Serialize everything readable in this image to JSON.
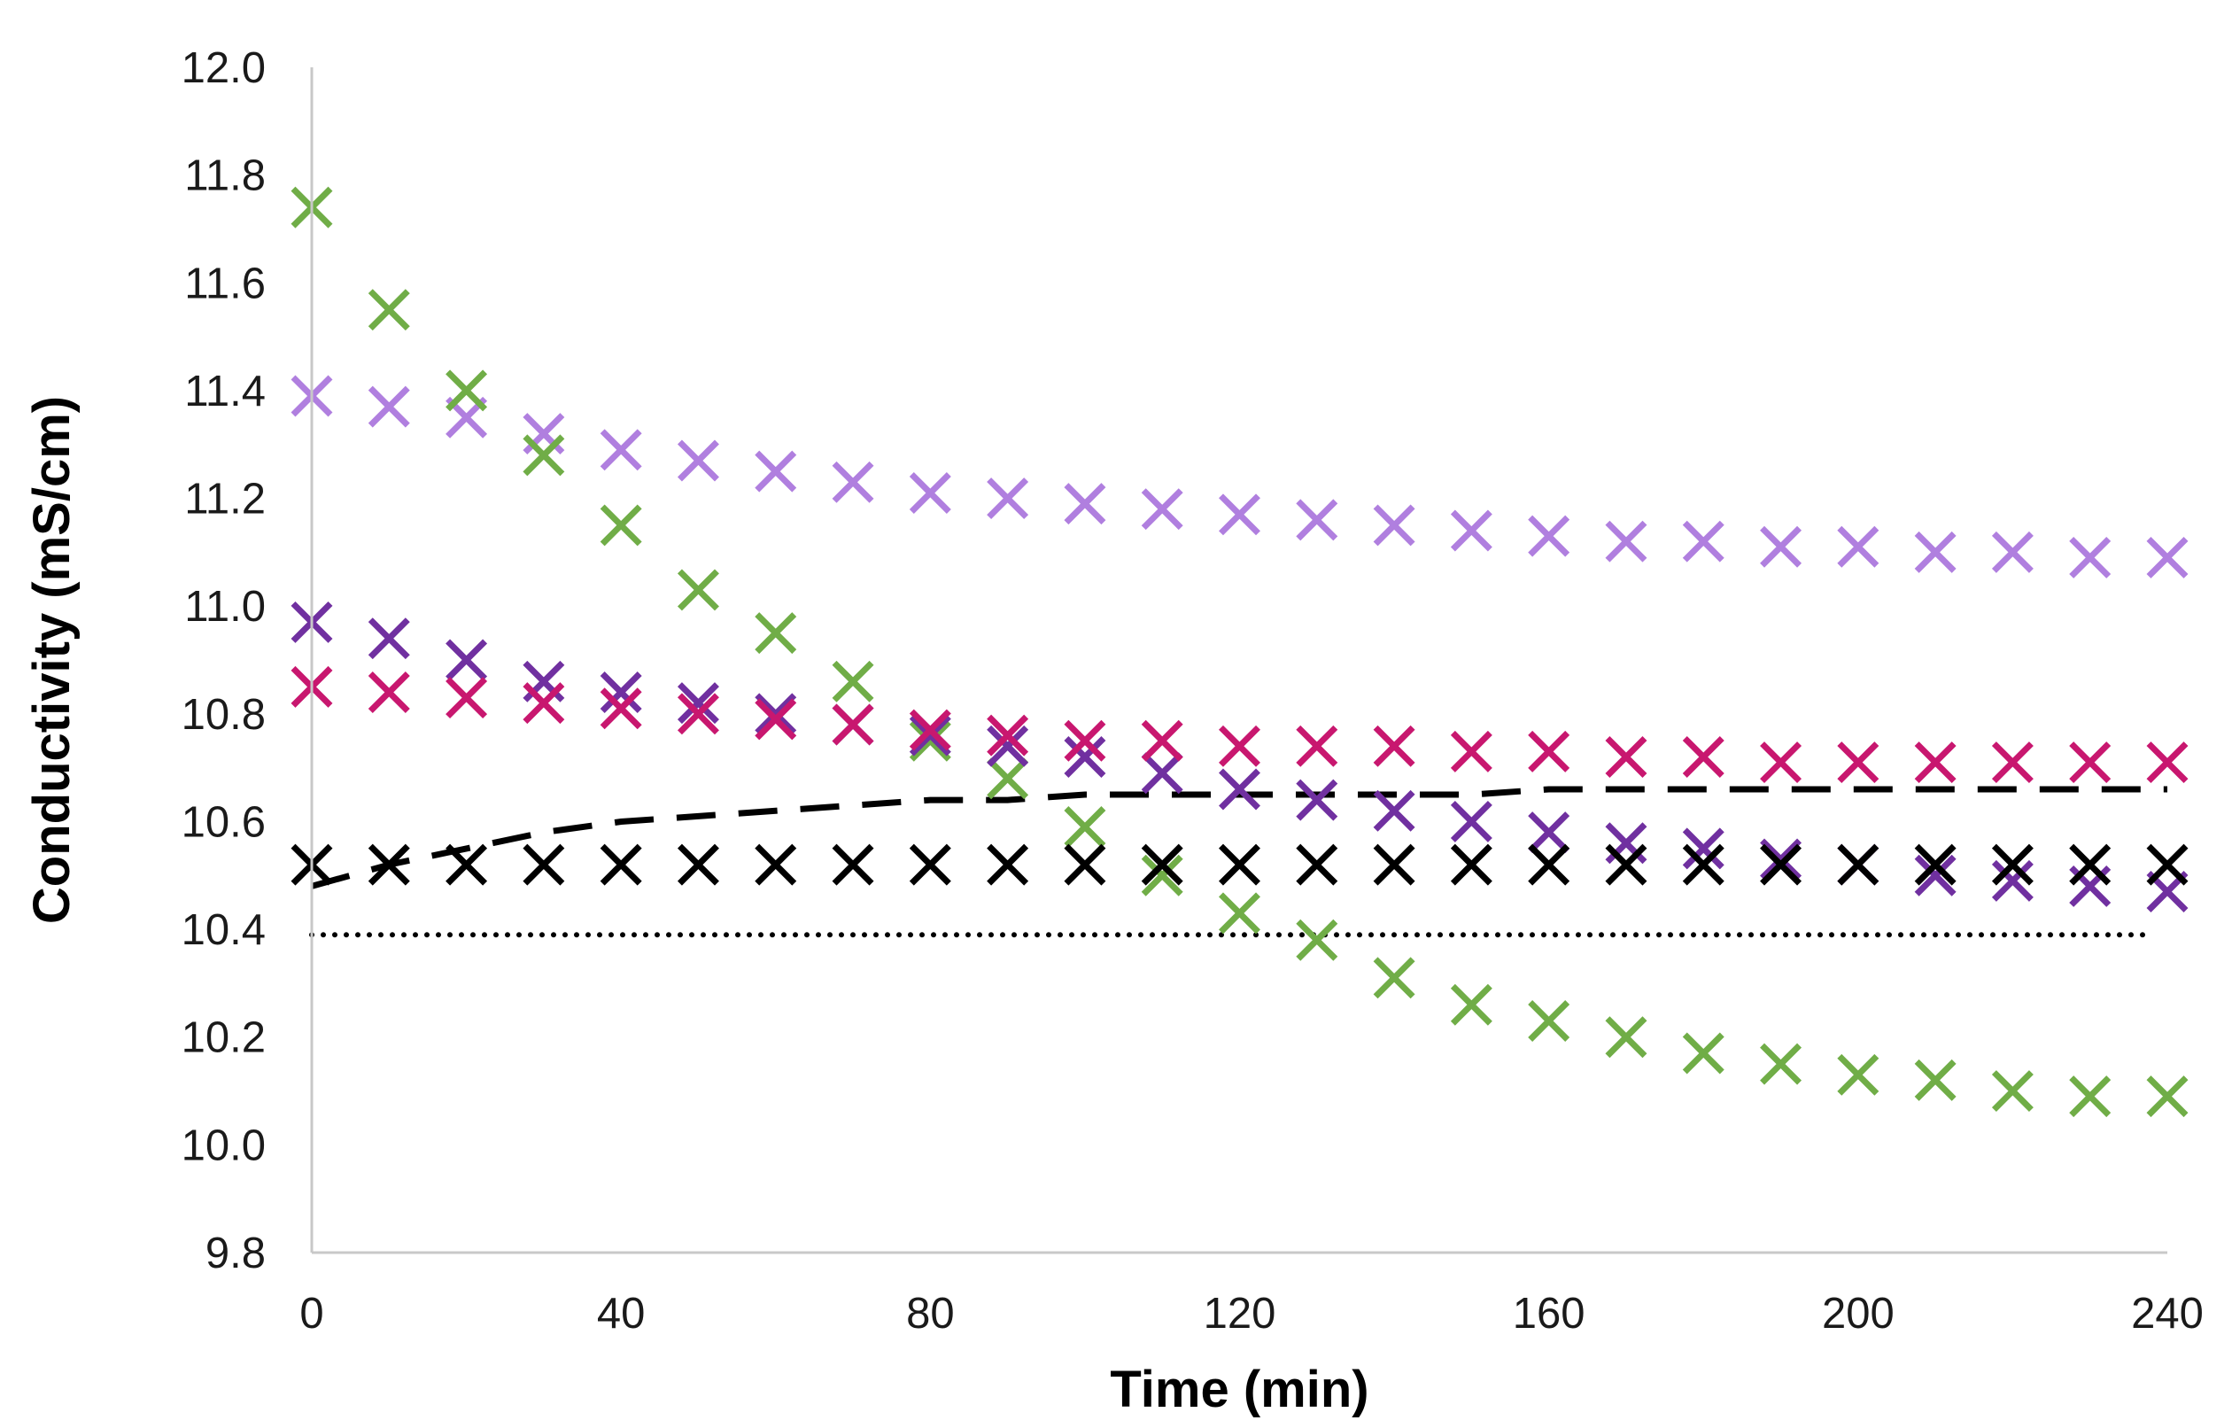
{
  "chart_data": {
    "type": "scatter",
    "title": "",
    "xlabel": "Time (min)",
    "ylabel": "Conductivity (mS/cm)",
    "xlim": [
      0,
      240
    ],
    "ylim": [
      9.8,
      12.0
    ],
    "xticks": [
      0,
      40,
      80,
      120,
      160,
      200,
      240
    ],
    "yticks": [
      9.8,
      10.0,
      10.2,
      10.4,
      10.6,
      10.8,
      11.0,
      11.2,
      11.4,
      11.6,
      11.8,
      12.0
    ],
    "grid": false,
    "legend": "none",
    "x": [
      0,
      10,
      20,
      30,
      40,
      50,
      60,
      70,
      80,
      90,
      100,
      110,
      120,
      130,
      140,
      150,
      160,
      170,
      180,
      190,
      200,
      210,
      220,
      230,
      240
    ],
    "series": [
      {
        "name": "light purple",
        "color": "#b07fdf",
        "marker": "x",
        "values": [
          11.39,
          11.37,
          11.35,
          11.32,
          11.29,
          11.27,
          11.25,
          11.23,
          11.21,
          11.2,
          11.19,
          11.18,
          11.17,
          11.16,
          11.15,
          11.14,
          11.13,
          11.12,
          11.12,
          11.11,
          11.11,
          11.1,
          11.1,
          11.09,
          11.09
        ]
      },
      {
        "name": "green",
        "color": "#70ad47",
        "marker": "x",
        "values": [
          11.74,
          11.55,
          11.4,
          11.28,
          11.15,
          11.03,
          10.95,
          10.86,
          10.75,
          10.68,
          10.59,
          10.5,
          10.43,
          10.38,
          10.31,
          10.26,
          10.23,
          10.2,
          10.17,
          10.15,
          10.13,
          10.12,
          10.1,
          10.09,
          10.09
        ]
      },
      {
        "name": "dark purple",
        "color": "#7030a0",
        "marker": "x",
        "values": [
          10.97,
          10.94,
          10.9,
          10.86,
          10.84,
          10.82,
          10.8,
          10.78,
          10.76,
          10.74,
          10.72,
          10.69,
          10.66,
          10.64,
          10.62,
          10.6,
          10.58,
          10.56,
          10.55,
          10.53,
          10.52,
          10.5,
          10.49,
          10.48,
          10.47
        ]
      },
      {
        "name": "magenta",
        "color": "#c8176f",
        "marker": "x",
        "values": [
          10.85,
          10.84,
          10.83,
          10.82,
          10.81,
          10.8,
          10.79,
          10.78,
          10.77,
          10.76,
          10.75,
          10.75,
          10.74,
          10.74,
          10.74,
          10.73,
          10.73,
          10.72,
          10.72,
          10.71,
          10.71,
          10.71,
          10.71,
          10.71,
          10.71
        ]
      },
      {
        "name": "black",
        "color": "#000000",
        "marker": "x",
        "values": [
          10.52,
          10.52,
          10.52,
          10.52,
          10.52,
          10.52,
          10.52,
          10.52,
          10.52,
          10.52,
          10.52,
          10.52,
          10.52,
          10.52,
          10.52,
          10.52,
          10.52,
          10.52,
          10.52,
          10.52,
          10.52,
          10.52,
          10.52,
          10.52,
          10.52
        ]
      }
    ],
    "lines": [
      {
        "name": "dashed reference",
        "style": "dashed",
        "color": "#000000",
        "x": [
          0,
          10,
          20,
          30,
          40,
          50,
          60,
          70,
          80,
          90,
          100,
          110,
          120,
          130,
          140,
          150,
          160,
          170,
          180,
          190,
          200,
          210,
          220,
          230,
          240
        ],
        "y": [
          10.48,
          10.52,
          10.55,
          10.58,
          10.6,
          10.61,
          10.62,
          10.63,
          10.64,
          10.64,
          10.65,
          10.65,
          10.65,
          10.65,
          10.65,
          10.65,
          10.66,
          10.66,
          10.66,
          10.66,
          10.66,
          10.66,
          10.66,
          10.66,
          10.66
        ]
      },
      {
        "name": "dotted reference",
        "style": "dotted",
        "color": "#000000",
        "x": [
          0,
          238
        ],
        "y": [
          10.39,
          10.39
        ]
      }
    ]
  }
}
